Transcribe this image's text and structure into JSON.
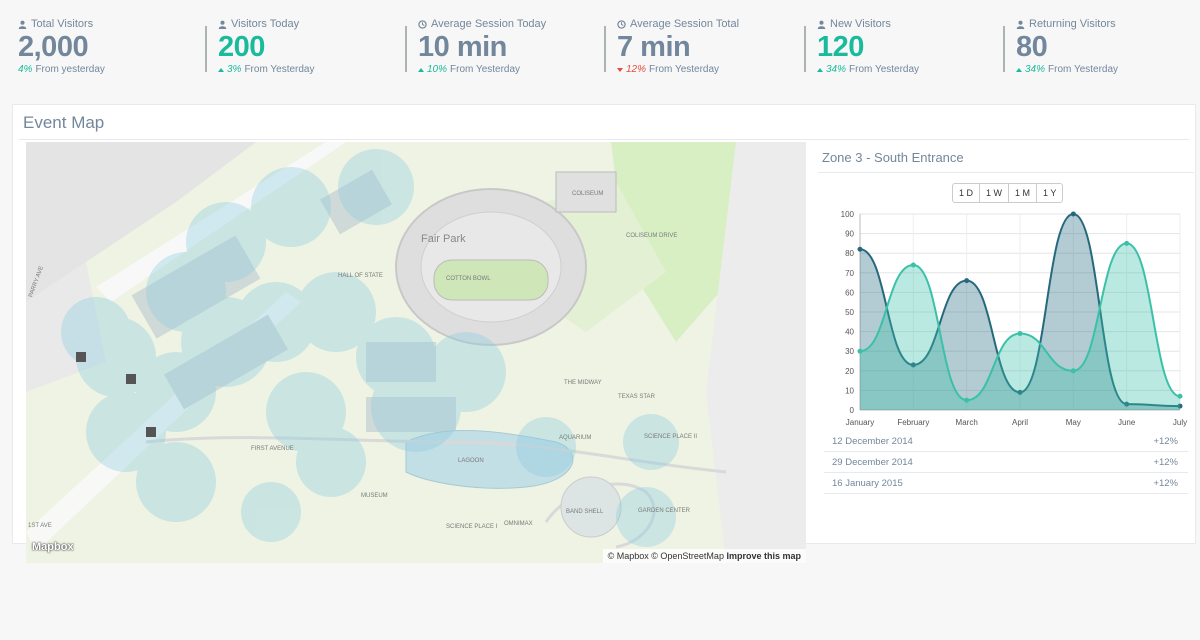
{
  "stats": [
    {
      "label": "Total Visitors",
      "icon": "user-icon",
      "value": "2,000",
      "value_color": "gray",
      "pct": "4%",
      "pct_color": "green",
      "arrow": "none",
      "suffix": "From yesterday"
    },
    {
      "label": "Visitors Today",
      "icon": "user-icon",
      "value": "200",
      "value_color": "green",
      "pct": "3%",
      "pct_color": "green",
      "arrow": "up",
      "suffix": "From Yesterday"
    },
    {
      "label": "Average Session Today",
      "icon": "clock-icon",
      "value": "10 min",
      "value_color": "gray",
      "pct": "10%",
      "pct_color": "green",
      "arrow": "up",
      "suffix": "From Yesterday"
    },
    {
      "label": "Average Session Total",
      "icon": "clock-icon",
      "value": "7 min",
      "value_color": "gray",
      "pct": "12%",
      "pct_color": "red",
      "arrow": "down",
      "suffix": "From Yesterday"
    },
    {
      "label": "New Visitors",
      "icon": "user-icon",
      "value": "120",
      "value_color": "green",
      "pct": "34%",
      "pct_color": "green",
      "arrow": "up",
      "suffix": "From Yesterday"
    },
    {
      "label": "Returning Visitors",
      "icon": "user-icon",
      "value": "80",
      "value_color": "gray",
      "pct": "34%",
      "pct_color": "green",
      "arrow": "up",
      "suffix": "From Yesterday"
    }
  ],
  "panel": {
    "title": "Event Map"
  },
  "map": {
    "logo": "Mapbox",
    "attribution": "© Mapbox © OpenStreetMap",
    "improve_link": "Improve this map",
    "labels": [
      "Fair Park",
      "COTTON BOWL",
      "COLISEUM",
      "AQUARIUM",
      "LAGOON",
      "SCIENCE PLACE I",
      "SCIENCE PLACE II",
      "GARDEN CENTER",
      "OMNIMAX",
      "BAND SHELL",
      "MUSEUM",
      "FIRST AVENUE",
      "THE MIDWAY",
      "TEXAS STAR",
      "HALL OF STATE",
      "COLISEUM DRIVE",
      "PARRY AVE",
      "1ST AVE"
    ]
  },
  "side": {
    "title": "Zone 3 - South Entrance",
    "ranges": [
      "1 D",
      "1 W",
      "1 M",
      "1 Y"
    ],
    "list": [
      {
        "date": "12 December 2014",
        "change": "+12%"
      },
      {
        "date": "29 December 2014",
        "change": "+12%"
      },
      {
        "date": "16 January 2015",
        "change": "+12%"
      }
    ]
  },
  "chart_data": {
    "type": "area",
    "categories": [
      "January",
      "February",
      "March",
      "April",
      "May",
      "June",
      "July"
    ],
    "series": [
      {
        "values": [
          82,
          23,
          66,
          9,
          100,
          3,
          2
        ],
        "color": "#26697d"
      },
      {
        "values": [
          30,
          74,
          5,
          39,
          20,
          85,
          7
        ],
        "color": "#3ac1a8"
      }
    ],
    "ylim": [
      0,
      100
    ],
    "yticks": [
      0,
      10,
      20,
      30,
      40,
      50,
      60,
      70,
      80,
      90,
      100
    ],
    "grid": true
  },
  "colors": {
    "accent": "#1abb9c",
    "negative": "#e74c3c",
    "text": "#73879c"
  }
}
